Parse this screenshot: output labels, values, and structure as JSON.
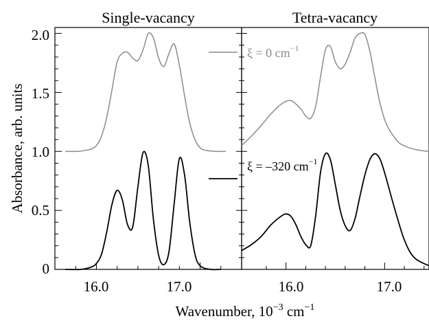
{
  "colors": {
    "zero": "#8a8a8a",
    "neg": "#000000"
  },
  "legend": [
    {
      "sym": "ξ = 0 cm",
      "sup": "−1",
      "color": "#8a8a8a"
    },
    {
      "sym": "ξ = –320 cm",
      "sup": "−1",
      "color": "#000000"
    }
  ],
  "shared": {
    "ylabel": "Absorbance, arb. units",
    "xlabel_pre": "Wavenumber, 10",
    "xlabel_sup1": "−3",
    "xlabel_mid": " cm",
    "xlabel_sup2": "−1",
    "y_ticks": [
      "0",
      "0.5",
      "1.0",
      "1.5",
      "2.0"
    ],
    "x_ticks": [
      "16.0",
      "17.0"
    ]
  },
  "chart_data": [
    {
      "type": "line",
      "title": "Single-vacancy",
      "xlim": [
        15.6,
        17.4
      ],
      "ylim": [
        0,
        2.05
      ],
      "series": [
        {
          "color": "#8a8a8a",
          "x": [
            15.7,
            15.82,
            15.9,
            15.95,
            16.0,
            16.05,
            16.1,
            16.15,
            16.2,
            16.25,
            16.3,
            16.35,
            16.4,
            16.45,
            16.5,
            16.55,
            16.6,
            16.65,
            16.7,
            16.75,
            16.8,
            16.85,
            16.9,
            16.95,
            17.0,
            17.05,
            17.15,
            17.25
          ],
          "y": [
            1.0,
            1.0,
            1.01,
            1.02,
            1.05,
            1.13,
            1.29,
            1.52,
            1.76,
            1.83,
            1.84,
            1.79,
            1.77,
            1.86,
            2.0,
            1.96,
            1.79,
            1.72,
            1.83,
            1.91,
            1.73,
            1.47,
            1.24,
            1.1,
            1.03,
            1.01,
            1.0,
            1.0
          ]
        },
        {
          "color": "#000000",
          "x": [
            15.7,
            15.85,
            15.95,
            16.0,
            16.05,
            16.1,
            16.15,
            16.2,
            16.25,
            16.3,
            16.35,
            16.4,
            16.45,
            16.5,
            16.55,
            16.6,
            16.65,
            16.7,
            16.75,
            16.8,
            16.85,
            16.9,
            16.95,
            17.0,
            17.1,
            17.2
          ],
          "y": [
            0.0,
            0.0,
            0.02,
            0.05,
            0.13,
            0.32,
            0.55,
            0.67,
            0.59,
            0.38,
            0.36,
            0.7,
            0.99,
            0.88,
            0.42,
            0.12,
            0.04,
            0.15,
            0.56,
            0.94,
            0.8,
            0.4,
            0.13,
            0.03,
            0.0,
            0.0
          ]
        }
      ]
    },
    {
      "type": "line",
      "title": "Tetra-vacancy",
      "xlim": [
        15.55,
        17.45
      ],
      "ylim": [
        0,
        2.05
      ],
      "series": [
        {
          "color": "#8a8a8a",
          "x": [
            15.55,
            15.65,
            15.75,
            15.85,
            15.95,
            16.05,
            16.15,
            16.2,
            16.25,
            16.3,
            16.35,
            16.4,
            16.45,
            16.5,
            16.55,
            16.6,
            16.65,
            16.7,
            16.75,
            16.8,
            16.85,
            16.9,
            16.95,
            17.0,
            17.05,
            17.1,
            17.15,
            17.25,
            17.35,
            17.45
          ],
          "y": [
            1.05,
            1.13,
            1.22,
            1.32,
            1.4,
            1.43,
            1.36,
            1.3,
            1.28,
            1.38,
            1.63,
            1.86,
            1.89,
            1.76,
            1.7,
            1.74,
            1.84,
            1.96,
            2.0,
            1.99,
            1.85,
            1.63,
            1.42,
            1.27,
            1.18,
            1.12,
            1.07,
            1.03,
            1.01,
            1.0
          ]
        },
        {
          "color": "#000000",
          "x": [
            15.55,
            15.65,
            15.75,
            15.85,
            15.95,
            16.0,
            16.05,
            16.1,
            16.15,
            16.2,
            16.25,
            16.3,
            16.35,
            16.4,
            16.45,
            16.5,
            16.55,
            16.6,
            16.65,
            16.7,
            16.75,
            16.8,
            16.85,
            16.9,
            16.95,
            17.0,
            17.1,
            17.2,
            17.3,
            17.45
          ],
          "y": [
            0.16,
            0.21,
            0.28,
            0.38,
            0.45,
            0.47,
            0.45,
            0.38,
            0.28,
            0.21,
            0.2,
            0.45,
            0.82,
            0.98,
            0.93,
            0.72,
            0.5,
            0.37,
            0.33,
            0.43,
            0.62,
            0.8,
            0.93,
            0.98,
            0.94,
            0.82,
            0.52,
            0.25,
            0.1,
            0.03
          ]
        }
      ]
    }
  ]
}
